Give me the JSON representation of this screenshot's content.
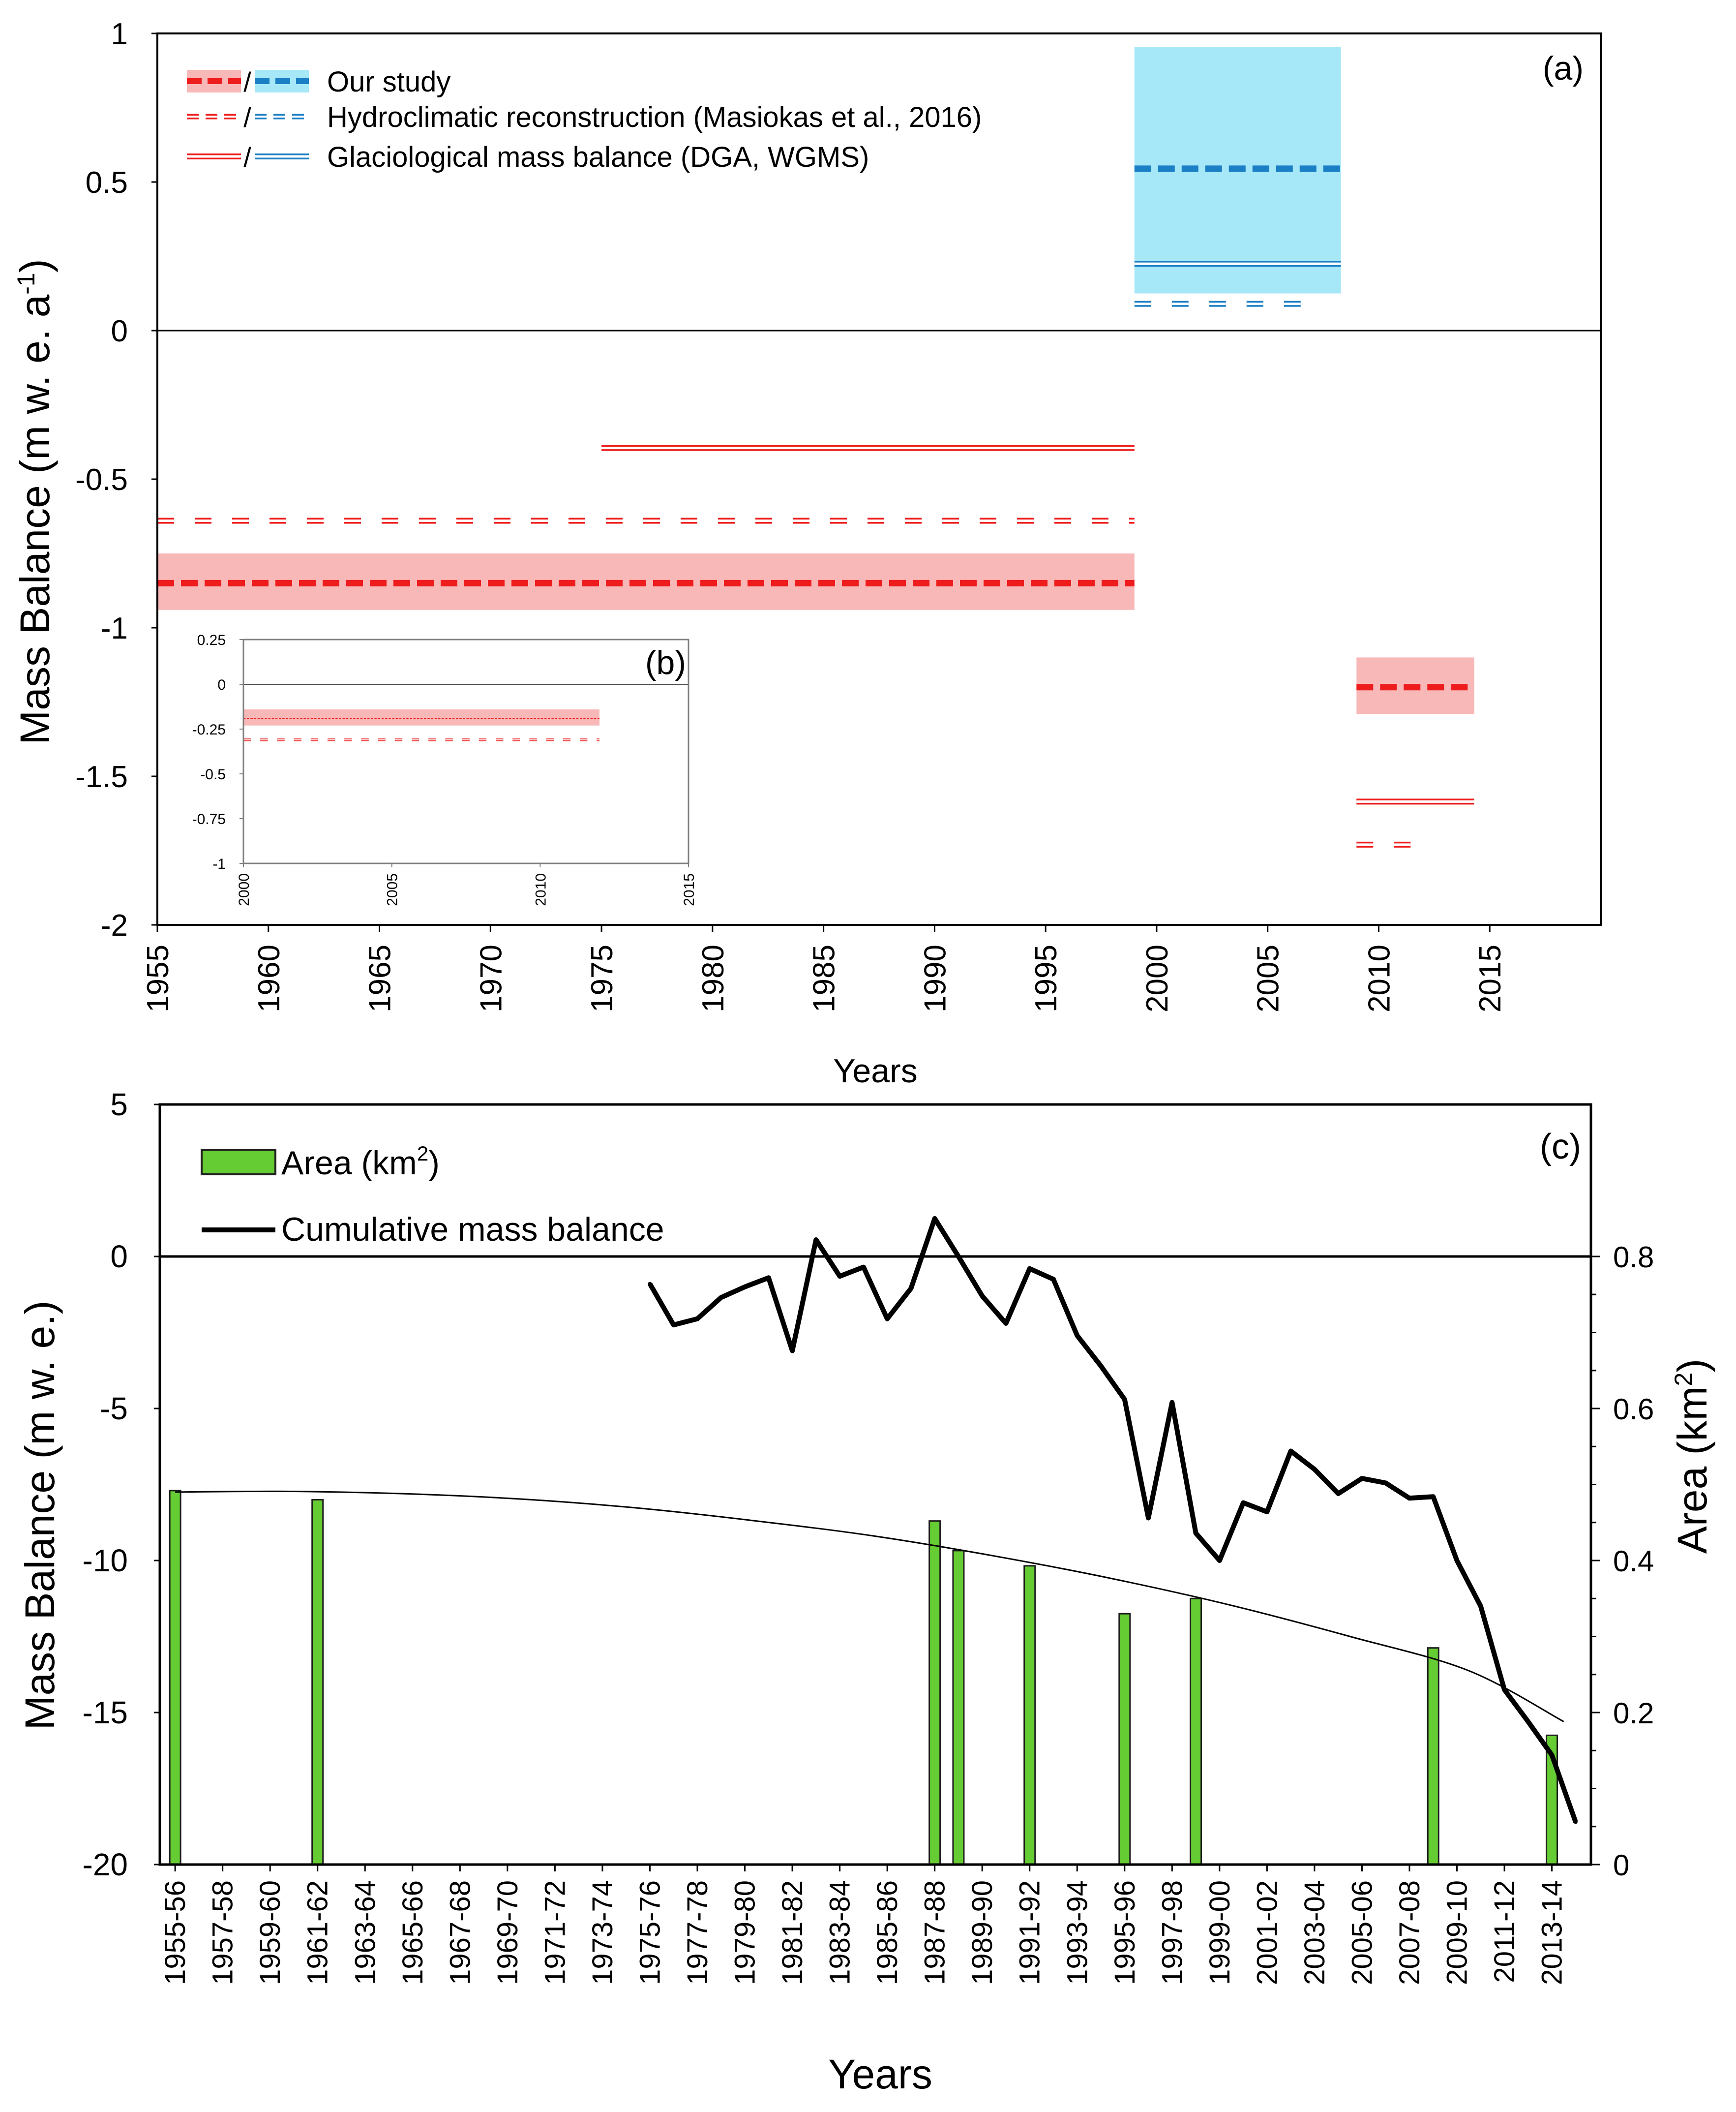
{
  "chart_data": [
    {
      "panel": "(a)",
      "type": "line",
      "xlabel": "Years",
      "ylabel": "Mass Balance (m w. e. a",
      "ylabel_sup": "-1",
      "ylabel_close": ")",
      "xlim": [
        1955,
        2020
      ],
      "ylim": [
        -2,
        1
      ],
      "xticks": [
        1955,
        1960,
        1965,
        1970,
        1975,
        1980,
        1985,
        1990,
        1995,
        2000,
        2005,
        2010,
        2015
      ],
      "yticks": [
        1,
        0.5,
        0,
        -0.5,
        -1,
        -1.5,
        -2
      ],
      "ytick_labels": [
        "1",
        "0.5",
        "0",
        "-0.5",
        "-1",
        "-1.5",
        "-2"
      ],
      "legend_placement": "top-left",
      "legend": [
        {
          "label": "Our study",
          "style": "thick-dashed",
          "separator": "/"
        },
        {
          "label": "Hydroclimatic reconstruction (Masiokas et al., 2016)",
          "style": "open-dashed",
          "separator": "/"
        },
        {
          "label": "Glaciological mass balance (DGA, WGMS)",
          "style": "open-solid",
          "separator": "/"
        }
      ],
      "colors": {
        "red": "#ee1c1c",
        "red_band": "#f9b8b8",
        "blue": "#1a7fc4",
        "blue_band": "#a6e8f8"
      },
      "series": [
        {
          "name": "Our study",
          "color": "red",
          "style": "thick-dashed",
          "x": [
            1955,
            1999
          ],
          "y": -0.85,
          "band": [
            -0.94,
            -0.75
          ]
        },
        {
          "name": "Our study",
          "color": "red",
          "style": "thick-dashed",
          "x": [
            2009,
            2014.3
          ],
          "y": -1.2,
          "band": [
            -1.29,
            -1.1
          ]
        },
        {
          "name": "Our study",
          "color": "blue",
          "style": "thick-dashed",
          "x": [
            1999,
            2008.3
          ],
          "y": 0.545,
          "band": [
            0.125,
            0.955
          ]
        },
        {
          "name": "Hydroclimatic reconstruction",
          "color": "red",
          "style": "open-dashed",
          "x": [
            1955,
            1999
          ],
          "y": -0.64
        },
        {
          "name": "Hydroclimatic reconstruction",
          "color": "red",
          "style": "open-dashed",
          "x": [
            2009,
            2012.3
          ],
          "y": -1.73
        },
        {
          "name": "Hydroclimatic reconstruction",
          "color": "blue",
          "style": "open-dashed",
          "x": [
            1999,
            2007.3
          ],
          "y": 0.09
        },
        {
          "name": "Glaciological mass balance",
          "color": "red",
          "style": "open-solid",
          "x": [
            1975,
            1999
          ],
          "y": -0.395
        },
        {
          "name": "Glaciological mass balance",
          "color": "red",
          "style": "open-solid",
          "x": [
            2009,
            2014.3
          ],
          "y": -1.585
        },
        {
          "name": "Glaciological mass balance",
          "color": "blue",
          "style": "open-solid",
          "x": [
            1999,
            2008.3
          ],
          "y": 0.225
        }
      ],
      "inset": {
        "panel": "(b)",
        "xlim": [
          2000,
          2015
        ],
        "ylim": [
          -1,
          0.25
        ],
        "xticks": [
          2000,
          2005,
          2010,
          2015
        ],
        "yticks": [
          0.25,
          0,
          -0.25,
          -0.5,
          -0.75,
          -1
        ],
        "ytick_labels": [
          "0.25",
          "0",
          "-0.25",
          "-0.5",
          "-0.75",
          "-1"
        ],
        "series": [
          {
            "name": "Our study",
            "color": "red",
            "style": "thin-dashed",
            "x": [
              2000,
              2012
            ],
            "y": -0.19,
            "band": [
              -0.14,
              -0.23
            ]
          },
          {
            "name": "Hydroclimatic reconstruction",
            "color": "red",
            "style": "open-dashed",
            "x": [
              2000,
              2012
            ],
            "y": -0.31
          }
        ]
      }
    },
    {
      "panel": "(c)",
      "type": "bar",
      "xlabel": "Years",
      "ylabel_left": "Mass Balance (m w. e.)",
      "ylabel_right": "Area  (km",
      "ylabel_right_sup": "2",
      "ylabel_right_close": ")",
      "ylim_left": [
        -20,
        5
      ],
      "yticks_left": [
        5,
        0,
        -5,
        -10,
        -15,
        -20
      ],
      "ytick_labels_left": [
        "5",
        "0",
        "-5",
        "-10",
        "-15",
        "-20"
      ],
      "ylim_right": [
        0,
        0.8
      ],
      "yticks_right": [
        0.8,
        0.6,
        0.4,
        0.2,
        0
      ],
      "ytick_labels_right": [
        "0.8",
        "0.6",
        "0.4",
        "0.2",
        "0"
      ],
      "legend_placement": "top-left",
      "legend": [
        {
          "label": "Area (km",
          "sup": "2",
          "close": ")",
          "style": "bar"
        },
        {
          "label": "Cumulative mass balance",
          "style": "line"
        }
      ],
      "colors": {
        "bar": "#66cc33",
        "bar_edge": "#1e1e1e",
        "line": "#000000"
      },
      "categories": [
        "1955-56",
        "1957-58",
        "1959-60",
        "1961-62",
        "1963-64",
        "1965-66",
        "1967-68",
        "1969-70",
        "1971-72",
        "1973-74",
        "1975-76",
        "1977-78",
        "1979-80",
        "1981-82",
        "1983-84",
        "1985-86",
        "1987-88",
        "1989-90",
        "1991-92",
        "1993-94",
        "1995-96",
        "1997-98",
        "1999-00",
        "2001-02",
        "2003-04",
        "2005-06",
        "2007-08",
        "2009-10",
        "2011-12",
        "2013-14"
      ],
      "area": {
        "name": "Area (km2)",
        "points": [
          {
            "x": 1955.5,
            "value": 0.492
          },
          {
            "x": 1961.5,
            "value": 0.48
          },
          {
            "x": 1987.5,
            "value": 0.452
          },
          {
            "x": 1988.5,
            "value": 0.413
          },
          {
            "x": 1991.5,
            "value": 0.393
          },
          {
            "x": 1995.5,
            "value": 0.33
          },
          {
            "x": 1998.5,
            "value": 0.35
          },
          {
            "x": 2008.5,
            "value": 0.285
          },
          {
            "x": 2013.5,
            "value": 0.17
          }
        ],
        "trend": [
          {
            "x": 1955.5,
            "value": 0.49
          },
          {
            "x": 1960,
            "value": 0.491
          },
          {
            "x": 1965,
            "value": 0.488
          },
          {
            "x": 1970,
            "value": 0.481
          },
          {
            "x": 1975,
            "value": 0.469
          },
          {
            "x": 1980,
            "value": 0.452
          },
          {
            "x": 1985,
            "value": 0.432
          },
          {
            "x": 1990,
            "value": 0.406
          },
          {
            "x": 1995,
            "value": 0.376
          },
          {
            "x": 2000,
            "value": 0.341
          },
          {
            "x": 2005,
            "value": 0.3
          },
          {
            "x": 2010,
            "value": 0.255
          },
          {
            "x": 2014,
            "value": 0.188
          }
        ]
      },
      "cumulative_mass_balance": {
        "name": "Cumulative mass balance",
        "points": [
          {
            "x": 1975.5,
            "y": -0.9
          },
          {
            "x": 1976.5,
            "y": -2.25
          },
          {
            "x": 1977.5,
            "y": -2.05
          },
          {
            "x": 1978.5,
            "y": -1.35
          },
          {
            "x": 1979.5,
            "y": -1.0
          },
          {
            "x": 1980.5,
            "y": -0.7
          },
          {
            "x": 1981.5,
            "y": -3.1
          },
          {
            "x": 1982.5,
            "y": 0.55
          },
          {
            "x": 1983.5,
            "y": -0.65
          },
          {
            "x": 1984.5,
            "y": -0.35
          },
          {
            "x": 1985.5,
            "y": -2.05
          },
          {
            "x": 1986.5,
            "y": -1.05
          },
          {
            "x": 1987.5,
            "y": 1.25
          },
          {
            "x": 1988.5,
            "y": 0.0
          },
          {
            "x": 1989.5,
            "y": -1.3
          },
          {
            "x": 1990.5,
            "y": -2.2
          },
          {
            "x": 1991.5,
            "y": -0.4
          },
          {
            "x": 1992.5,
            "y": -0.75
          },
          {
            "x": 1993.5,
            "y": -2.6
          },
          {
            "x": 1994.5,
            "y": -3.6
          },
          {
            "x": 1995.5,
            "y": -4.7
          },
          {
            "x": 1996.5,
            "y": -8.6
          },
          {
            "x": 1997.5,
            "y": -4.8
          },
          {
            "x": 1998.5,
            "y": -9.1
          },
          {
            "x": 1999.5,
            "y": -10.0
          },
          {
            "x": 2000.5,
            "y": -8.1
          },
          {
            "x": 2001.5,
            "y": -8.4
          },
          {
            "x": 2002.5,
            "y": -6.4
          },
          {
            "x": 2003.5,
            "y": -7.0
          },
          {
            "x": 2004.5,
            "y": -7.8
          },
          {
            "x": 2005.5,
            "y": -7.3
          },
          {
            "x": 2006.5,
            "y": -7.45
          },
          {
            "x": 2007.5,
            "y": -7.95
          },
          {
            "x": 2008.5,
            "y": -7.9
          },
          {
            "x": 2009.5,
            "y": -10.0
          },
          {
            "x": 2010.5,
            "y": -11.5
          },
          {
            "x": 2011.5,
            "y": -14.25
          },
          {
            "x": 2012.5,
            "y": -15.3
          },
          {
            "x": 2013.5,
            "y": -16.4
          },
          {
            "x": 2014.5,
            "y": -18.6
          }
        ]
      }
    }
  ]
}
